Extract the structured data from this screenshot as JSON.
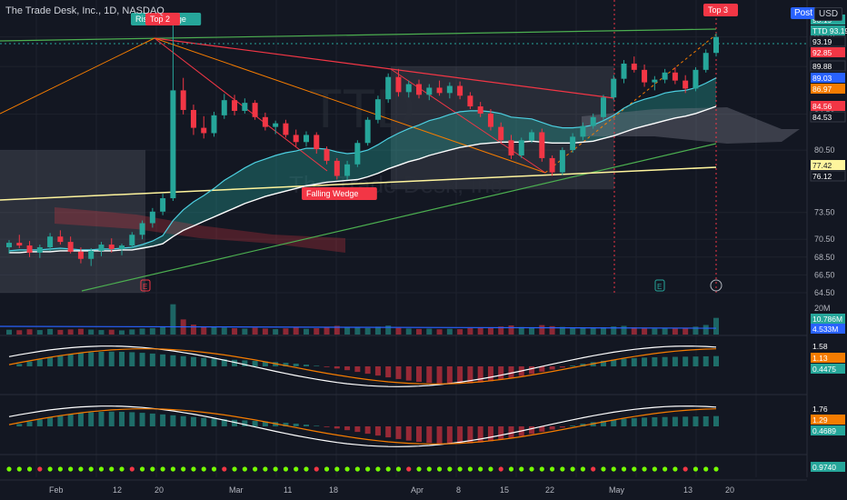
{
  "header": {
    "title": "The Trade Desk, Inc., 1D, NASDAQ"
  },
  "toolbar": {
    "post_label": "Post",
    "currency_label": "USD"
  },
  "watermark": {
    "ticker": "TTD",
    "name": "The Trade Desk, Inc"
  },
  "annotations": [
    {
      "key": "rising",
      "text": "Rising Wedge",
      "color": "#26a69a"
    },
    {
      "key": "top2",
      "text": "Top 2",
      "color": "#f23645"
    },
    {
      "key": "top3",
      "text": "Top 3",
      "color": "#f23645"
    },
    {
      "key": "falling",
      "text": "Falling Wedge",
      "color": "#f23645"
    }
  ],
  "event_markers": [
    "E",
    "E"
  ],
  "chart_data": {
    "type": "candlestick",
    "ylim": [
      64.5,
      95.5
    ],
    "x_ticks": [
      "Feb",
      "12",
      "20",
      "Mar",
      "11",
      "18",
      "Apr",
      "8",
      "15",
      "22",
      "May",
      "13",
      "20"
    ],
    "y_ticks": [
      93.19,
      89.88,
      84.53,
      80.5,
      73.5,
      70.5,
      68.5,
      66.5,
      64.5
    ],
    "candles": [
      [
        69.6,
        70.4,
        68.9,
        70.1
      ],
      [
        70.1,
        71.0,
        69.5,
        69.8
      ],
      [
        69.8,
        70.3,
        68.5,
        69.0
      ],
      [
        69.0,
        69.9,
        68.4,
        69.6
      ],
      [
        69.6,
        71.2,
        69.2,
        70.8
      ],
      [
        70.8,
        71.5,
        69.9,
        70.2
      ],
      [
        70.2,
        70.8,
        68.9,
        69.1
      ],
      [
        69.1,
        69.6,
        67.8,
        68.3
      ],
      [
        68.3,
        69.5,
        67.5,
        69.2
      ],
      [
        69.2,
        70.2,
        68.6,
        69.9
      ],
      [
        69.9,
        70.6,
        69.0,
        69.4
      ],
      [
        69.4,
        70.0,
        68.7,
        69.8
      ],
      [
        69.8,
        71.3,
        69.5,
        71.0
      ],
      [
        71.0,
        72.6,
        70.5,
        72.3
      ],
      [
        72.3,
        74.0,
        71.8,
        73.6
      ],
      [
        73.6,
        75.6,
        73.2,
        75.1
      ],
      [
        75.1,
        94.5,
        74.8,
        87.2
      ],
      [
        87.2,
        88.6,
        84.5,
        85.0
      ],
      [
        85.0,
        85.6,
        82.2,
        83.0
      ],
      [
        83.0,
        84.3,
        81.8,
        82.4
      ],
      [
        82.4,
        84.8,
        82.0,
        84.4
      ],
      [
        84.4,
        86.8,
        84.0,
        86.1
      ],
      [
        86.1,
        86.7,
        84.4,
        84.9
      ],
      [
        84.9,
        86.3,
        84.6,
        85.8
      ],
      [
        85.8,
        86.1,
        83.9,
        84.2
      ],
      [
        84.2,
        84.7,
        82.7,
        83.1
      ],
      [
        83.1,
        83.8,
        82.3,
        83.5
      ],
      [
        83.5,
        83.9,
        81.9,
        82.2
      ],
      [
        82.2,
        82.8,
        80.9,
        81.4
      ],
      [
        81.4,
        82.6,
        80.9,
        82.2
      ],
      [
        82.2,
        82.5,
        80.1,
        80.6
      ],
      [
        80.6,
        80.9,
        78.9,
        79.3
      ],
      [
        79.3,
        79.6,
        77.2,
        77.6
      ],
      [
        77.6,
        79.3,
        77.2,
        78.9
      ],
      [
        78.9,
        81.6,
        78.6,
        81.3
      ],
      [
        81.3,
        84.2,
        81.0,
        83.9
      ],
      [
        83.9,
        86.6,
        83.5,
        86.2
      ],
      [
        86.2,
        89.1,
        85.8,
        88.7
      ],
      [
        88.7,
        89.6,
        86.5,
        87.0
      ],
      [
        87.0,
        88.3,
        86.4,
        87.9
      ],
      [
        87.9,
        88.4,
        86.3,
        86.7
      ],
      [
        86.7,
        87.9,
        86.1,
        87.5
      ],
      [
        87.5,
        88.3,
        86.6,
        86.9
      ],
      [
        86.9,
        88.1,
        86.3,
        87.7
      ],
      [
        87.7,
        88.2,
        86.2,
        86.6
      ],
      [
        86.6,
        87.0,
        85.1,
        85.4
      ],
      [
        85.4,
        85.9,
        84.2,
        84.6
      ],
      [
        84.6,
        85.1,
        82.7,
        83.1
      ],
      [
        83.1,
        83.6,
        81.2,
        81.6
      ],
      [
        81.6,
        82.2,
        79.5,
        79.9
      ],
      [
        79.9,
        81.9,
        79.6,
        81.6
      ],
      [
        81.6,
        82.8,
        81.3,
        82.5
      ],
      [
        82.5,
        82.9,
        79.2,
        79.6
      ],
      [
        79.6,
        79.9,
        77.6,
        78.0
      ],
      [
        78.0,
        80.8,
        77.7,
        80.5
      ],
      [
        80.5,
        82.4,
        80.2,
        82.0
      ],
      [
        82.0,
        83.6,
        81.6,
        83.2
      ],
      [
        83.2,
        84.6,
        82.9,
        84.2
      ],
      [
        84.2,
        86.7,
        83.9,
        86.4
      ],
      [
        86.4,
        88.9,
        86.1,
        88.5
      ],
      [
        88.5,
        90.6,
        88.0,
        90.2
      ],
      [
        90.2,
        91.0,
        89.2,
        89.5
      ],
      [
        89.5,
        90.1,
        87.6,
        88.1
      ],
      [
        88.1,
        88.8,
        87.2,
        88.4
      ],
      [
        88.4,
        89.6,
        88.0,
        89.2
      ],
      [
        89.2,
        89.8,
        87.9,
        88.3
      ],
      [
        88.3,
        88.9,
        86.9,
        87.4
      ],
      [
        87.4,
        89.8,
        87.1,
        89.5
      ],
      [
        89.5,
        91.8,
        89.2,
        91.4
      ],
      [
        91.4,
        93.6,
        91.0,
        93.19
      ]
    ],
    "ema_fast": [
      69.2,
      69.3,
      69.3,
      69.3,
      69.4,
      69.5,
      69.4,
      69.3,
      69.3,
      69.4,
      69.4,
      69.5,
      69.6,
      69.9,
      70.3,
      70.9,
      72.6,
      73.8,
      74.7,
      75.4,
      76.2,
      77.1,
      77.8,
      78.5,
      79.1,
      79.5,
      79.9,
      80.2,
      80.4,
      80.7,
      80.7,
      80.6,
      80.3,
      80.1,
      80.2,
      80.5,
      81.1,
      81.8,
      82.4,
      82.9,
      83.3,
      83.8,
      84.1,
      84.5,
      84.8,
      84.9,
      84.9,
      84.8,
      84.6,
      84.2,
      84.1,
      84.0,
      83.6,
      83.2,
      83.0,
      83.0,
      83.1,
      83.3,
      83.8,
      84.4,
      85.2,
      85.8,
      86.2,
      86.5,
      86.9,
      87.1,
      87.2,
      87.5,
      88.0,
      88.6
    ],
    "ema_slow": [
      69.0,
      69.0,
      69.1,
      69.1,
      69.1,
      69.2,
      69.2,
      69.2,
      69.2,
      69.2,
      69.2,
      69.3,
      69.3,
      69.5,
      69.7,
      70.0,
      70.8,
      71.5,
      72.0,
      72.5,
      73.0,
      73.5,
      74.0,
      74.5,
      74.9,
      75.3,
      75.6,
      75.9,
      76.2,
      76.5,
      76.7,
      76.9,
      77.0,
      77.1,
      77.2,
      77.5,
      77.9,
      78.4,
      78.8,
      79.2,
      79.5,
      79.9,
      80.2,
      80.5,
      80.8,
      81.0,
      81.2,
      81.3,
      81.4,
      81.4,
      81.4,
      81.5,
      81.4,
      81.3,
      81.3,
      81.3,
      81.4,
      81.5,
      81.8,
      82.1,
      82.5,
      82.9,
      83.2,
      83.5,
      83.8,
      84.1,
      84.3,
      84.6,
      85.0,
      85.4
    ],
    "volume": [
      3.1,
      2.8,
      3.4,
      2.9,
      3.6,
      3.0,
      3.3,
      3.7,
      3.2,
      2.9,
      3.1,
      2.7,
      3.3,
      3.9,
      4.2,
      4.8,
      19.6,
      9.8,
      6.4,
      5.2,
      4.9,
      4.5,
      4.1,
      3.8,
      4.4,
      3.9,
      3.5,
      4.0,
      4.6,
      3.7,
      4.1,
      4.9,
      5.6,
      4.8,
      4.4,
      4.2,
      5.1,
      5.8,
      4.3,
      3.9,
      3.6,
      3.8,
      3.4,
      3.7,
      3.5,
      4.1,
      4.3,
      4.6,
      5.2,
      5.9,
      4.8,
      4.2,
      6.1,
      5.4,
      4.9,
      4.5,
      4.3,
      4.1,
      4.7,
      5.2,
      5.6,
      4.6,
      4.0,
      3.8,
      4.2,
      3.9,
      4.3,
      5.1,
      6.2,
      10.786
    ],
    "volume_ma_label": "4.533M",
    "volume_label": "10.786M",
    "volume_axis_label": "20M",
    "macd_labels": [
      "1.58",
      "1.13",
      "0.4475"
    ],
    "macd2_labels": [
      "1.76",
      "1.29",
      "0.4689"
    ],
    "osc_label": "0.9740",
    "price_labels": [
      {
        "text": "93.19",
        "color": "#26a69a"
      },
      {
        "text": "TTD 93.19",
        "color": "#26a69a"
      },
      {
        "text": "93.19",
        "color": "#131722"
      },
      {
        "text": "92.85",
        "color": "#f23645"
      },
      {
        "text": "89.88",
        "color": "#131722"
      },
      {
        "text": "89.03",
        "color": "#2962ff"
      },
      {
        "text": "86.97",
        "color": "#f57c00"
      },
      {
        "text": "84.56",
        "color": "#f23645"
      },
      {
        "text": "84.53",
        "color": "#131722"
      },
      {
        "text": "77.42",
        "color": "#fff59d"
      },
      {
        "text": "76.12",
        "color": "#131722"
      }
    ]
  }
}
